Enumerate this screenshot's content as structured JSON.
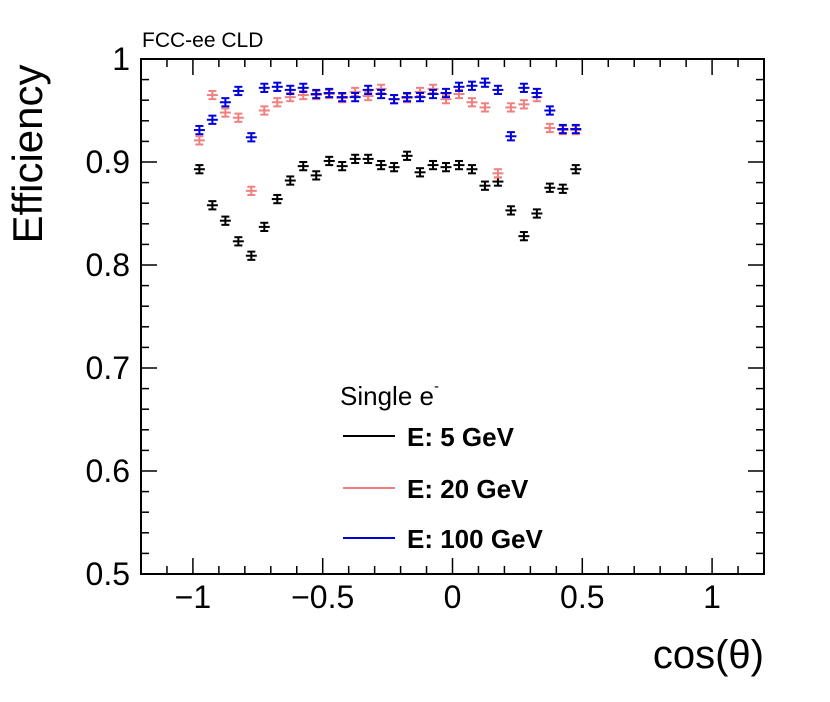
{
  "chart_data": {
    "type": "scatter",
    "experiment_label": "FCC-ee CLD",
    "xlabel": "cos(θ)",
    "ylabel": "Efficiency",
    "xlim": [
      -1.2,
      1.2
    ],
    "ylim": [
      0.5,
      1.0
    ],
    "x_ticks": [
      -1,
      -0.5,
      0,
      0.5,
      1
    ],
    "x_tick_labels": [
      "−1",
      "−0.5",
      "0",
      "0.5",
      "1"
    ],
    "y_ticks": [
      0.5,
      0.6,
      0.7,
      0.8,
      0.9,
      1.0
    ],
    "y_tick_labels": [
      "0.5",
      "0.6",
      "0.7",
      "0.8",
      "0.9",
      "1"
    ],
    "x_bin_half_width": 0.025,
    "legend": {
      "title": "Single e",
      "title_superscript": "-",
      "placement": "lower-center"
    },
    "series": [
      {
        "name": "E: 5 GeV",
        "color": "#000000",
        "error": 0.004,
        "points": [
          [
            -0.975,
            0.893
          ],
          [
            -0.925,
            0.858
          ],
          [
            -0.875,
            0.843
          ],
          [
            -0.825,
            0.823
          ],
          [
            -0.775,
            0.809
          ],
          [
            -0.725,
            0.837
          ],
          [
            -0.675,
            0.864
          ],
          [
            -0.625,
            0.882
          ],
          [
            -0.575,
            0.896
          ],
          [
            -0.525,
            0.887
          ],
          [
            -0.475,
            0.901
          ],
          [
            -0.425,
            0.896
          ],
          [
            -0.375,
            0.903
          ],
          [
            -0.325,
            0.903
          ],
          [
            -0.275,
            0.897
          ],
          [
            -0.225,
            0.895
          ],
          [
            -0.175,
            0.906
          ],
          [
            -0.125,
            0.89
          ],
          [
            -0.075,
            0.897
          ],
          [
            -0.025,
            0.895
          ],
          [
            0.025,
            0.897
          ],
          [
            0.075,
            0.893
          ],
          [
            0.125,
            0.877
          ],
          [
            0.175,
            0.881
          ],
          [
            0.225,
            0.853
          ],
          [
            0.275,
            0.828
          ],
          [
            0.325,
            0.85
          ],
          [
            0.375,
            0.875
          ],
          [
            0.425,
            0.874
          ],
          [
            0.475,
            0.893
          ]
        ]
      },
      {
        "name": "E: 20 GeV",
        "color": "#f08080",
        "error": 0.004,
        "points": [
          [
            -0.975,
            0.921
          ],
          [
            -0.925,
            0.965
          ],
          [
            -0.875,
            0.948
          ],
          [
            -0.825,
            0.943
          ],
          [
            -0.775,
            0.872
          ],
          [
            -0.725,
            0.95
          ],
          [
            -0.675,
            0.958
          ],
          [
            -0.625,
            0.963
          ],
          [
            -0.575,
            0.965
          ],
          [
            -0.525,
            0.965
          ],
          [
            -0.475,
            0.966
          ],
          [
            -0.425,
            0.962
          ],
          [
            -0.375,
            0.968
          ],
          [
            -0.325,
            0.964
          ],
          [
            -0.275,
            0.971
          ],
          [
            -0.225,
            0.961
          ],
          [
            -0.175,
            0.962
          ],
          [
            -0.125,
            0.968
          ],
          [
            -0.075,
            0.971
          ],
          [
            -0.025,
            0.961
          ],
          [
            0.025,
            0.966
          ],
          [
            0.075,
            0.958
          ],
          [
            0.125,
            0.953
          ],
          [
            0.175,
            0.889
          ],
          [
            0.225,
            0.953
          ],
          [
            0.275,
            0.956
          ],
          [
            0.325,
            0.963
          ],
          [
            0.375,
            0.933
          ],
          [
            0.425,
            0.931
          ],
          [
            0.475,
            0.931
          ]
        ]
      },
      {
        "name": "E: 100 GeV",
        "color": "#0000dd",
        "error": 0.004,
        "points": [
          [
            -0.975,
            0.931
          ],
          [
            -0.925,
            0.941
          ],
          [
            -0.875,
            0.958
          ],
          [
            -0.825,
            0.969
          ],
          [
            -0.775,
            0.924
          ],
          [
            -0.725,
            0.972
          ],
          [
            -0.675,
            0.973
          ],
          [
            -0.625,
            0.97
          ],
          [
            -0.575,
            0.972
          ],
          [
            -0.525,
            0.966
          ],
          [
            -0.475,
            0.967
          ],
          [
            -0.425,
            0.963
          ],
          [
            -0.375,
            0.963
          ],
          [
            -0.325,
            0.97
          ],
          [
            -0.275,
            0.966
          ],
          [
            -0.225,
            0.961
          ],
          [
            -0.175,
            0.963
          ],
          [
            -0.125,
            0.963
          ],
          [
            -0.075,
            0.966
          ],
          [
            -0.025,
            0.967
          ],
          [
            0.025,
            0.973
          ],
          [
            0.075,
            0.974
          ],
          [
            0.125,
            0.977
          ],
          [
            0.175,
            0.97
          ],
          [
            0.225,
            0.925
          ],
          [
            0.275,
            0.972
          ],
          [
            0.325,
            0.967
          ],
          [
            0.375,
            0.95
          ],
          [
            0.425,
            0.932
          ],
          [
            0.475,
            0.932
          ]
        ]
      }
    ]
  }
}
